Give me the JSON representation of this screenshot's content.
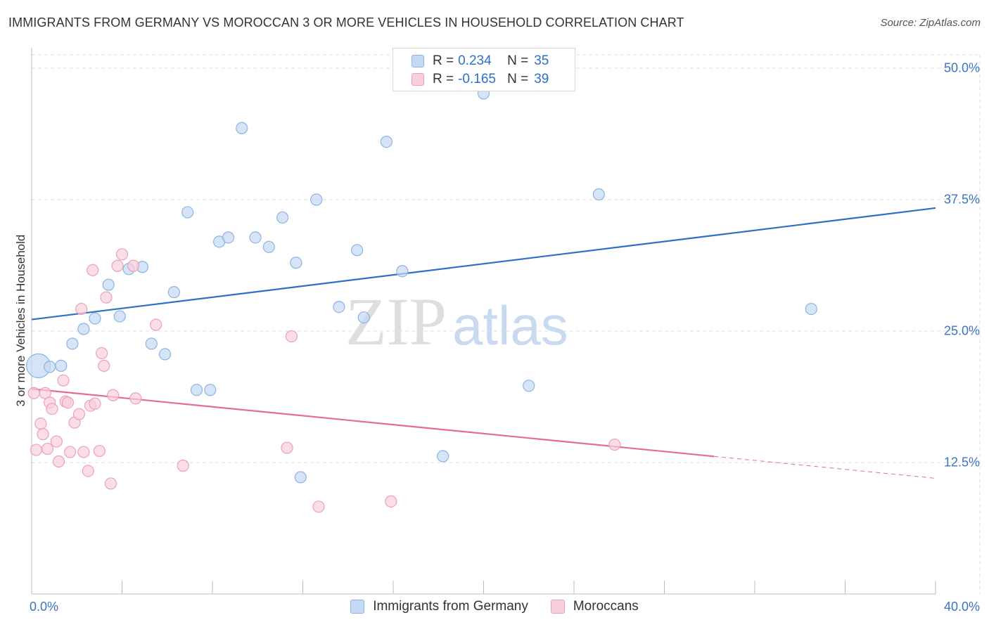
{
  "title": "IMMIGRANTS FROM GERMANY VS MOROCCAN 3 OR MORE VEHICLES IN HOUSEHOLD CORRELATION CHART",
  "source": "Source: ZipAtlas.com",
  "watermark": {
    "zip": "ZIP",
    "atlas": "atlas"
  },
  "stats": {
    "rows": [
      {
        "r_label": "R =",
        "r_value": "0.234",
        "n_label": "N =",
        "n_value": "35"
      },
      {
        "r_label": "R =",
        "r_value": "-0.165",
        "n_label": "N =",
        "n_value": "39"
      }
    ]
  },
  "legend": {
    "items": [
      {
        "label": "Immigrants from Germany"
      },
      {
        "label": "Moroccans"
      }
    ]
  },
  "colors": {
    "germany_fill": "#c5d9f5",
    "germany_stroke": "#8db3e2",
    "germany_line": "#2f6fc8",
    "moroccan_fill": "#f9cfdc",
    "moroccan_stroke": "#eca0b8",
    "moroccan_line": "#e56b98",
    "tick_label": "#3a74c4",
    "grid": "#dddddd"
  },
  "chart_data": {
    "type": "scatter",
    "title": "IMMIGRANTS FROM GERMANY VS MOROCCAN 3 OR MORE VEHICLES IN HOUSEHOLD CORRELATION CHART",
    "xlabel": "",
    "ylabel": "3 or more Vehicles in Household",
    "xlim": [
      0,
      40
    ],
    "ylim": [
      0,
      50
    ],
    "x_tick_labels": [
      "0.0%",
      "40.0%"
    ],
    "y_ticks": [
      12.5,
      25,
      37.5,
      50
    ],
    "y_tick_labels": [
      "12.5%",
      "25.0%",
      "37.5%",
      "50.0%"
    ],
    "grid": true,
    "legend_position": "bottom",
    "series": [
      {
        "name": "Immigrants from Germany",
        "trend": {
          "x": [
            0,
            40
          ],
          "y": [
            26.1,
            36.7
          ],
          "dashed_from_x": null
        },
        "points": [
          {
            "x": 0.3,
            "y": 21.7,
            "big": true
          },
          {
            "x": 0.8,
            "y": 21.6
          },
          {
            "x": 1.3,
            "y": 21.7
          },
          {
            "x": 1.8,
            "y": 23.8
          },
          {
            "x": 2.3,
            "y": 25.2
          },
          {
            "x": 2.8,
            "y": 26.2
          },
          {
            "x": 3.4,
            "y": 29.4
          },
          {
            "x": 3.9,
            "y": 26.4
          },
          {
            "x": 4.3,
            "y": 30.9
          },
          {
            "x": 4.9,
            "y": 31.1
          },
          {
            "x": 5.3,
            "y": 23.8
          },
          {
            "x": 5.9,
            "y": 22.8
          },
          {
            "x": 6.3,
            "y": 28.7
          },
          {
            "x": 6.9,
            "y": 36.3
          },
          {
            "x": 7.3,
            "y": 19.4
          },
          {
            "x": 7.9,
            "y": 19.4
          },
          {
            "x": 8.3,
            "y": 33.5
          },
          {
            "x": 8.7,
            "y": 33.9
          },
          {
            "x": 9.3,
            "y": 44.3
          },
          {
            "x": 9.9,
            "y": 33.9
          },
          {
            "x": 10.5,
            "y": 33.0
          },
          {
            "x": 11.1,
            "y": 35.8
          },
          {
            "x": 11.7,
            "y": 31.5
          },
          {
            "x": 11.9,
            "y": 11.1
          },
          {
            "x": 12.6,
            "y": 37.5
          },
          {
            "x": 13.6,
            "y": 27.3
          },
          {
            "x": 14.4,
            "y": 32.7
          },
          {
            "x": 14.7,
            "y": 26.3
          },
          {
            "x": 15.7,
            "y": 43.0
          },
          {
            "x": 16.4,
            "y": 30.7
          },
          {
            "x": 18.2,
            "y": 13.1
          },
          {
            "x": 20.0,
            "y": 47.6
          },
          {
            "x": 22.0,
            "y": 19.8
          },
          {
            "x": 25.1,
            "y": 38.0
          },
          {
            "x": 34.5,
            "y": 27.1
          }
        ]
      },
      {
        "name": "Moroccans",
        "trend": {
          "x": [
            0,
            40
          ],
          "y": [
            19.5,
            11.0
          ],
          "dashed_from_x": 30.2
        },
        "points": [
          {
            "x": 0.1,
            "y": 19.1
          },
          {
            "x": 0.2,
            "y": 13.7
          },
          {
            "x": 0.4,
            "y": 16.2
          },
          {
            "x": 0.5,
            "y": 15.2
          },
          {
            "x": 0.6,
            "y": 19.1
          },
          {
            "x": 0.7,
            "y": 13.8
          },
          {
            "x": 0.8,
            "y": 18.2
          },
          {
            "x": 0.9,
            "y": 17.6
          },
          {
            "x": 1.1,
            "y": 14.5
          },
          {
            "x": 1.2,
            "y": 12.6
          },
          {
            "x": 1.4,
            "y": 20.3
          },
          {
            "x": 1.5,
            "y": 18.3
          },
          {
            "x": 1.6,
            "y": 18.2
          },
          {
            "x": 1.7,
            "y": 13.5
          },
          {
            "x": 1.9,
            "y": 16.3
          },
          {
            "x": 2.1,
            "y": 17.1
          },
          {
            "x": 2.2,
            "y": 27.1
          },
          {
            "x": 2.3,
            "y": 13.5
          },
          {
            "x": 2.5,
            "y": 11.7
          },
          {
            "x": 2.6,
            "y": 17.9
          },
          {
            "x": 2.7,
            "y": 30.8
          },
          {
            "x": 2.8,
            "y": 18.1
          },
          {
            "x": 3.0,
            "y": 13.6
          },
          {
            "x": 3.1,
            "y": 22.9
          },
          {
            "x": 3.2,
            "y": 21.7
          },
          {
            "x": 3.3,
            "y": 28.2
          },
          {
            "x": 3.5,
            "y": 10.5
          },
          {
            "x": 3.6,
            "y": 18.9
          },
          {
            "x": 3.8,
            "y": 31.2
          },
          {
            "x": 4.0,
            "y": 32.3
          },
          {
            "x": 4.5,
            "y": 31.2
          },
          {
            "x": 4.6,
            "y": 18.6
          },
          {
            "x": 5.5,
            "y": 25.6
          },
          {
            "x": 6.7,
            "y": 12.2
          },
          {
            "x": 11.3,
            "y": 13.9
          },
          {
            "x": 11.5,
            "y": 24.5
          },
          {
            "x": 12.7,
            "y": 8.3
          },
          {
            "x": 15.9,
            "y": 8.8
          },
          {
            "x": 25.8,
            "y": 14.2
          }
        ]
      }
    ]
  }
}
